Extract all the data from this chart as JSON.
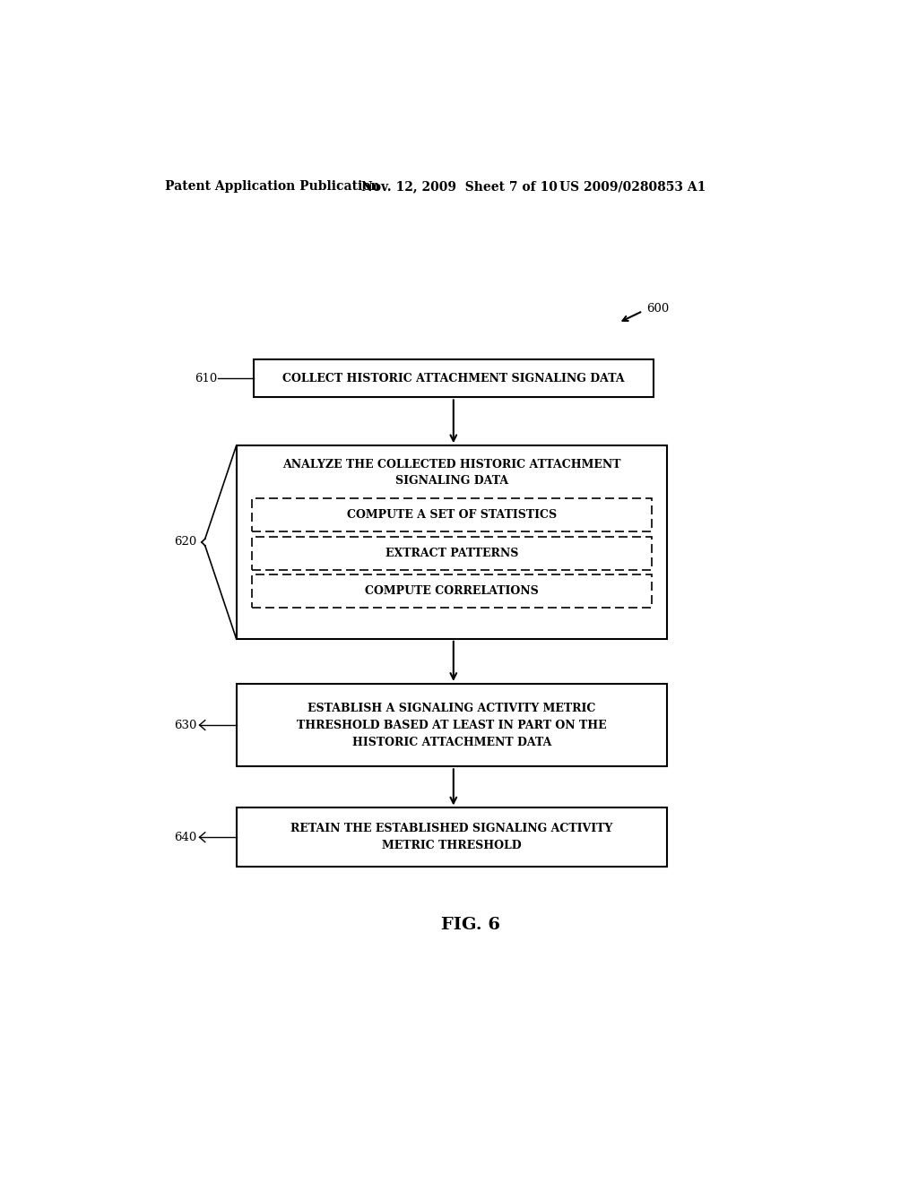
{
  "background_color": "#ffffff",
  "header_left": "Patent Application Publication",
  "header_mid": "Nov. 12, 2009  Sheet 7 of 10",
  "header_right": "US 2009/0280853 A1",
  "figure_label": "FIG. 6",
  "ref_600": "600",
  "ref_610": "610",
  "ref_620": "620",
  "ref_630": "630",
  "ref_640": "640",
  "box610_text": "COLLECT HISTORIC ATTACHMENT SIGNALING DATA",
  "box620_title": "ANALYZE THE COLLECTED HISTORIC ATTACHMENT\nSIGNALING DATA",
  "box620a_text": "COMPUTE A SET OF STATISTICS",
  "box620b_text": "EXTRACT PATTERNS",
  "box620c_text": "COMPUTE CORRELATIONS",
  "box630_text": "ESTABLISH A SIGNALING ACTIVITY METRIC\nTHRESHOLD BASED AT LEAST IN PART ON THE\nHISTORIC ATTACHMENT DATA",
  "box640_text": "RETAIN THE ESTABLISHED SIGNALING ACTIVITY\nMETRIC THRESHOLD",
  "line_color": "#000000",
  "text_color": "#000000",
  "font_size_header": 10,
  "font_size_box": 9,
  "font_size_ref": 9.5,
  "font_size_fig": 14
}
